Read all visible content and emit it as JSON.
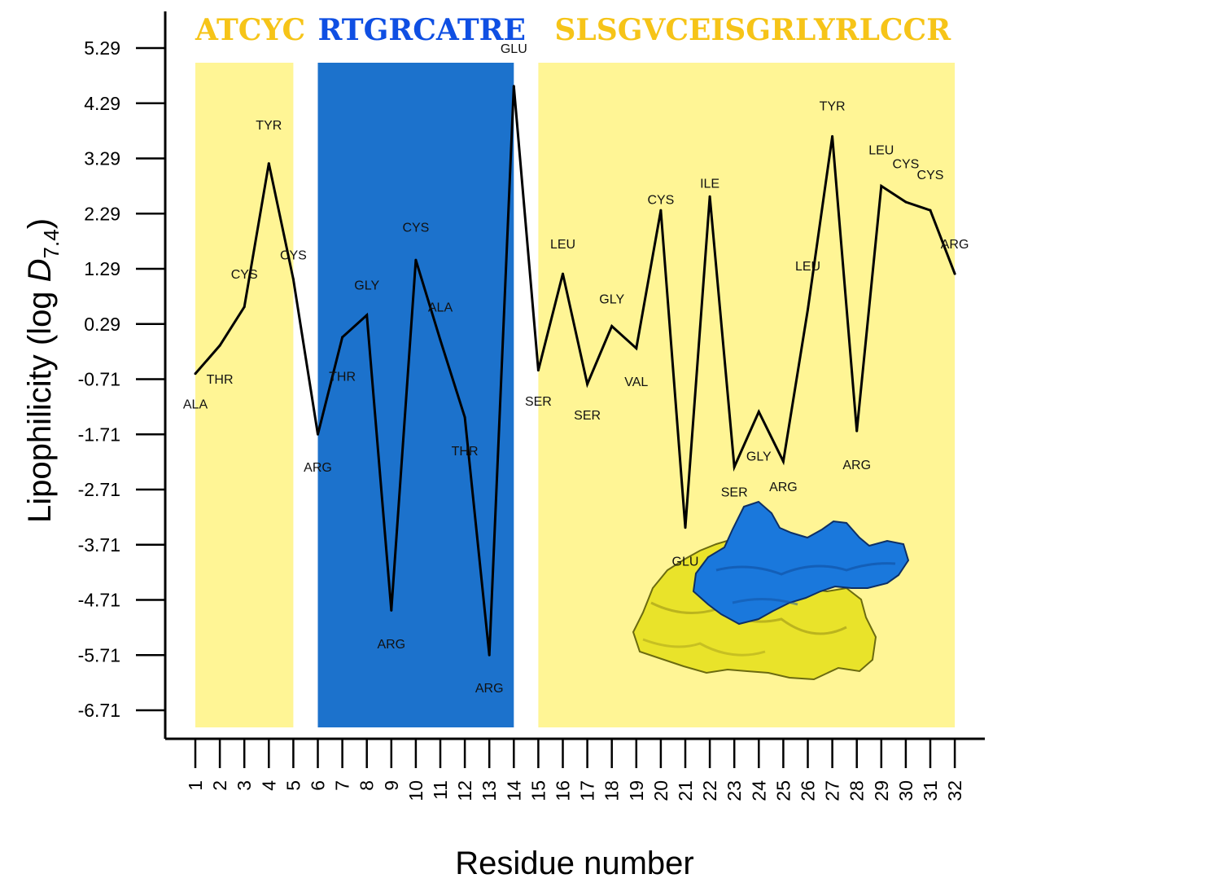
{
  "chart_data": {
    "type": "line",
    "xlabel": "Residue number",
    "ylabel_main": "Lipophilicity (log ",
    "ylabel_italic": "D",
    "ylabel_sub": "7.4",
    "ylabel_close": ")",
    "y_ticks": [
      "5.29",
      "4.29",
      "3.29",
      "2.29",
      "1.29",
      "0.29",
      "-0.71",
      "-1.71",
      "-2.71",
      "-3.71",
      "-4.71",
      "-5.71",
      "-6.71"
    ],
    "ylim": [
      -7.2,
      5.8
    ],
    "x": [
      1,
      2,
      3,
      4,
      5,
      6,
      7,
      8,
      9,
      10,
      11,
      12,
      13,
      14,
      15,
      16,
      17,
      18,
      19,
      20,
      21,
      22,
      23,
      24,
      25,
      26,
      27,
      28,
      29,
      30,
      31,
      32
    ],
    "x_ticks": [
      "1",
      "2",
      "3",
      "4",
      "5",
      "6",
      "7",
      "8",
      "9",
      "10",
      "11",
      "12",
      "13",
      "14",
      "15",
      "16",
      "17",
      "18",
      "19",
      "20",
      "21",
      "22",
      "23",
      "24",
      "25",
      "26",
      "27",
      "28",
      "29",
      "30",
      "31",
      "32"
    ],
    "values": [
      -0.61,
      -0.1,
      0.6,
      3.2,
      1.1,
      -1.71,
      0.05,
      0.45,
      -4.9,
      1.45,
      0.0,
      -1.4,
      -5.71,
      4.6,
      -0.55,
      1.2,
      -0.8,
      0.25,
      -0.15,
      2.35,
      -3.4,
      2.6,
      -2.3,
      -1.3,
      -2.2,
      0.55,
      3.69,
      -1.65,
      2.79,
      2.5,
      2.35,
      1.2
    ],
    "residue_names": [
      "ALA",
      "THR",
      "CYS",
      "TYR",
      "CYS",
      "ARG",
      "THR",
      "GLY",
      "ARG",
      "CYS",
      "ALA",
      "THR",
      "ARG",
      "GLU",
      "SER",
      "LEU",
      "SER",
      "GLY",
      "VAL",
      "CYS",
      "GLU",
      "ILE",
      "SER",
      "GLY",
      "ARG",
      "LEU",
      "TYR",
      "ARG",
      "LEU",
      "CYS",
      "CYS",
      "ARG"
    ],
    "label_values": [
      -1.15,
      -0.7,
      1.2,
      3.9,
      1.55,
      -2.3,
      -0.65,
      1.0,
      -5.5,
      2.05,
      0.6,
      -2.0,
      -6.3,
      5.29,
      -1.1,
      1.75,
      -1.35,
      0.75,
      -0.75,
      2.55,
      -4.0,
      2.85,
      -2.75,
      -2.1,
      -2.65,
      1.35,
      4.25,
      -2.25,
      3.45,
      3.2,
      3.0,
      1.75
    ],
    "regions": [
      {
        "sequence": "ATCYC",
        "start": 1,
        "end": 5,
        "color": "#fff595",
        "text_color": "#f6c418"
      },
      {
        "sequence": "RTGRCATRE",
        "start": 6,
        "end": 14,
        "color": "#1c72cc",
        "text_color": "#0f4fe3"
      },
      {
        "sequence": "SLSGVCEISGRLYRLCCR",
        "start": 15,
        "end": 32,
        "color": "#fff595",
        "text_color": "#f6c418"
      }
    ],
    "line_color": "#000000"
  }
}
